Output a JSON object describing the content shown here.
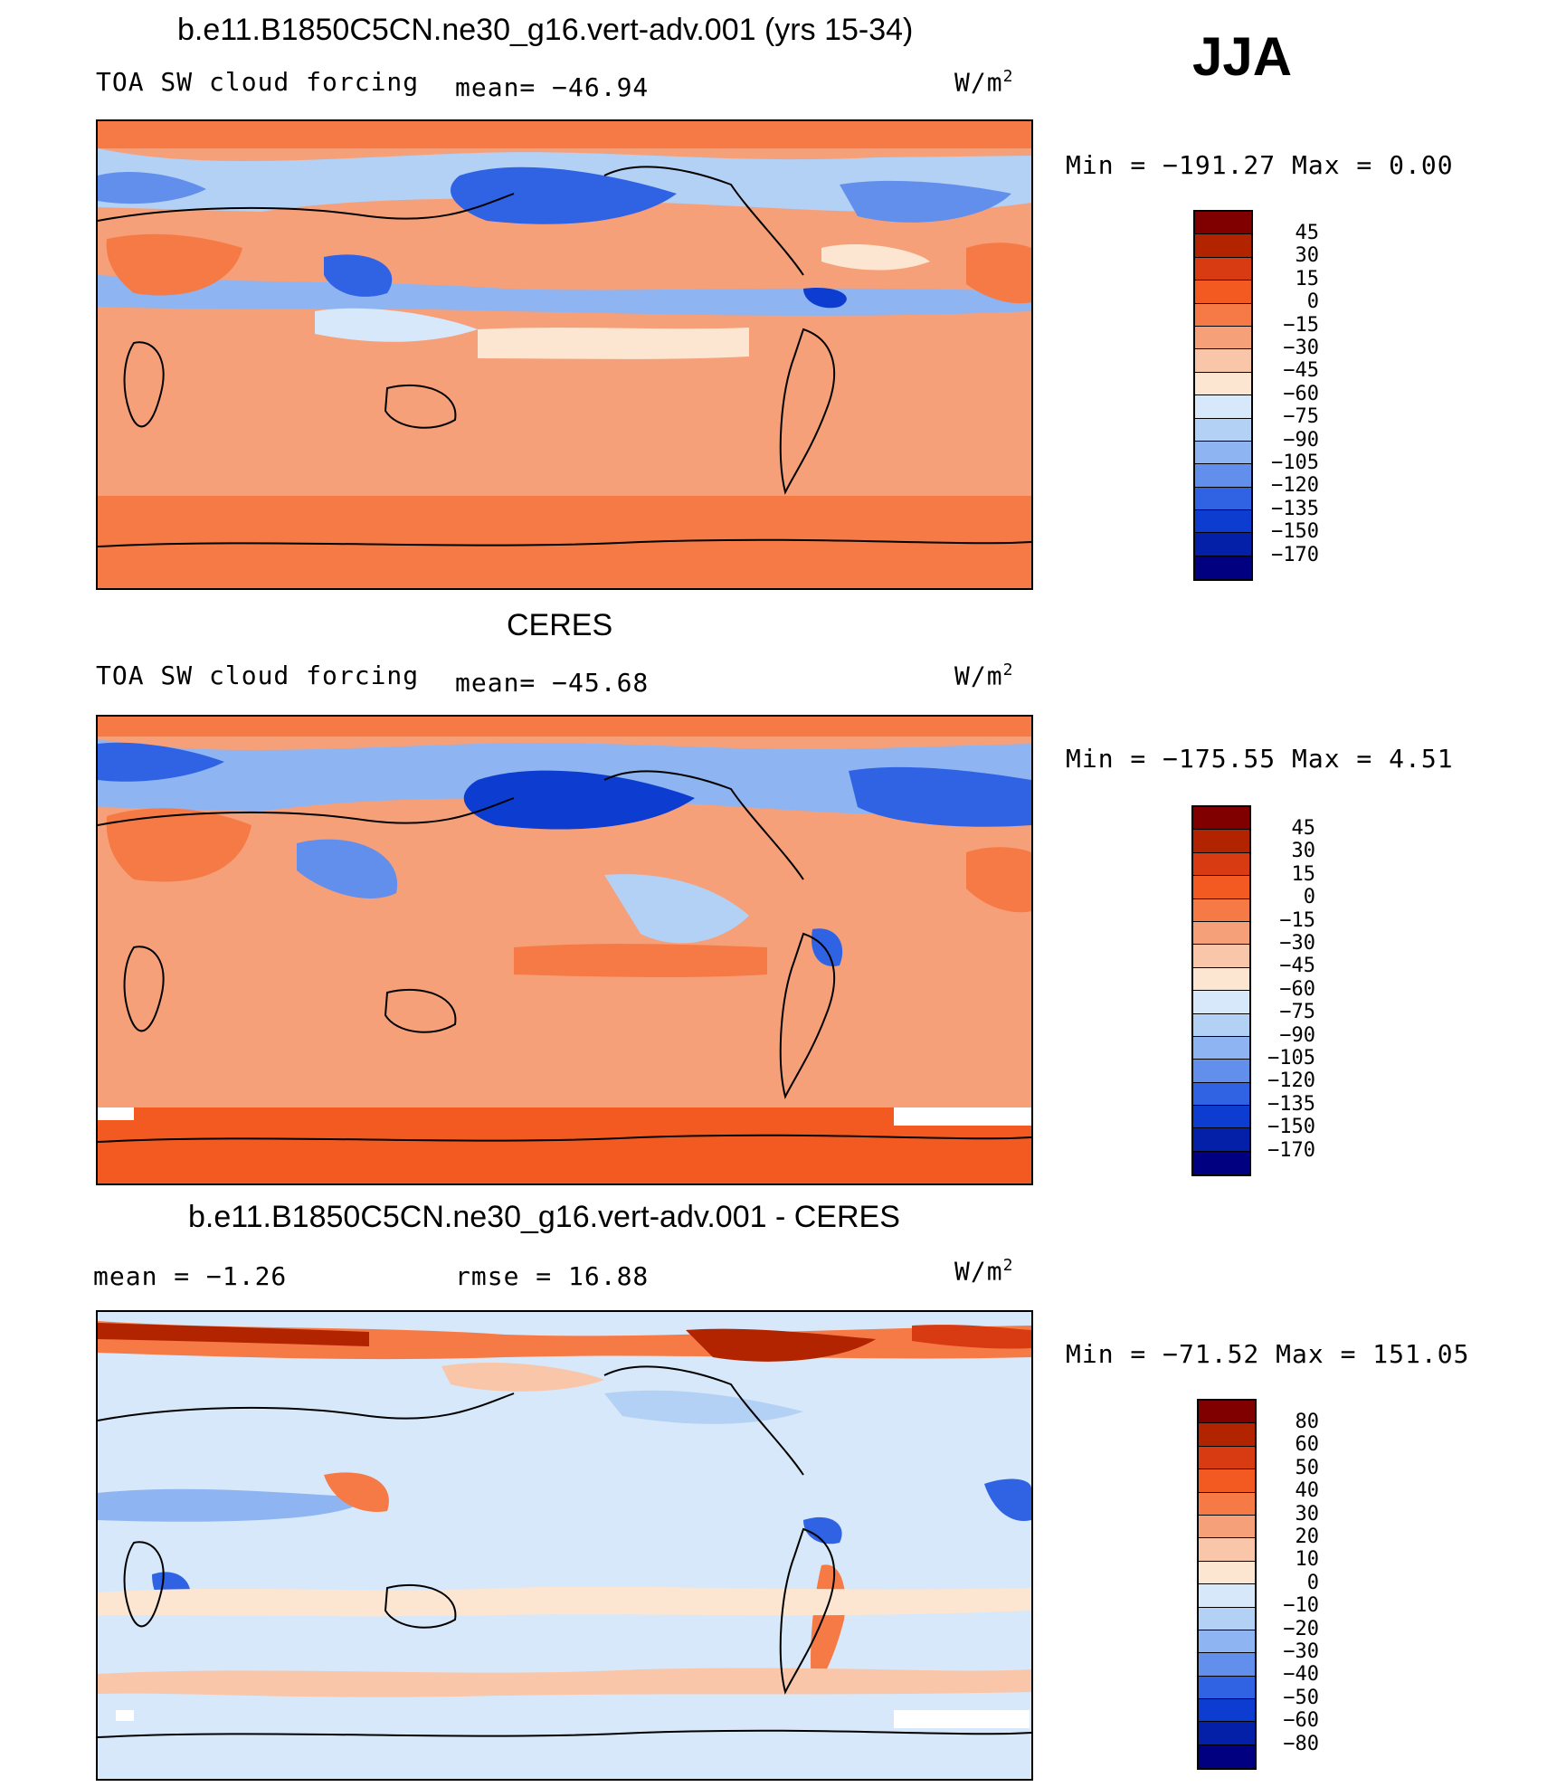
{
  "season": "JJA",
  "panels": [
    {
      "title": "b.e11.B1850C5CN.ne30_g16.vert-adv.001 (yrs 15-34)",
      "variable": "TOA SW cloud forcing",
      "stat": "mean= −46.94",
      "stat2": "",
      "units_base": "W/m",
      "units_exp": "2",
      "minmax": "Min = −191.27 Max =   0.00",
      "colorbar": {
        "labels": [
          "45",
          "30",
          "15",
          "0",
          "−15",
          "−30",
          "−45",
          "−60",
          "−75",
          "−90",
          "−105",
          "−120",
          "−135",
          "−150",
          "−170"
        ],
        "colors": [
          "#800000",
          "#b22400",
          "#d83a12",
          "#f25a22",
          "#f57a45",
          "#f6a07a",
          "#f9c6aa",
          "#fce6d2",
          "#d6e8fa",
          "#b3d0f5",
          "#8eb4f1",
          "#628fec",
          "#2f63e4",
          "#0d3cd0",
          "#0520a8",
          "#000080"
        ]
      }
    },
    {
      "title": "CERES",
      "variable": "TOA SW cloud forcing",
      "stat": "mean= −45.68",
      "stat2": "",
      "units_base": "W/m",
      "units_exp": "2",
      "minmax": "Min = −175.55 Max =   4.51",
      "colorbar": {
        "labels": [
          "45",
          "30",
          "15",
          "0",
          "−15",
          "−30",
          "−45",
          "−60",
          "−75",
          "−90",
          "−105",
          "−120",
          "−135",
          "−150",
          "−170"
        ],
        "colors": [
          "#800000",
          "#b22400",
          "#d83a12",
          "#f25a22",
          "#f57a45",
          "#f6a07a",
          "#f9c6aa",
          "#fce6d2",
          "#d6e8fa",
          "#b3d0f5",
          "#8eb4f1",
          "#628fec",
          "#2f63e4",
          "#0d3cd0",
          "#0520a8",
          "#000080"
        ]
      }
    },
    {
      "title": "b.e11.B1850C5CN.ne30_g16.vert-adv.001 - CERES",
      "variable": "",
      "stat": "mean =   −1.26",
      "stat2": "rmse =   16.88",
      "units_base": "W/m",
      "units_exp": "2",
      "minmax": "Min = −71.52 Max = 151.05",
      "colorbar": {
        "labels": [
          "80",
          "60",
          "50",
          "40",
          "30",
          "20",
          "10",
          "0",
          "−10",
          "−20",
          "−30",
          "−40",
          "−50",
          "−60",
          "−80"
        ],
        "colors": [
          "#800000",
          "#b22400",
          "#d83a12",
          "#f25a22",
          "#f57a45",
          "#f6a07a",
          "#f9c6aa",
          "#fce6d2",
          "#d6e8fa",
          "#b3d0f5",
          "#8eb4f1",
          "#628fec",
          "#2f63e4",
          "#0d3cd0",
          "#0520a8",
          "#000080"
        ]
      }
    }
  ]
}
